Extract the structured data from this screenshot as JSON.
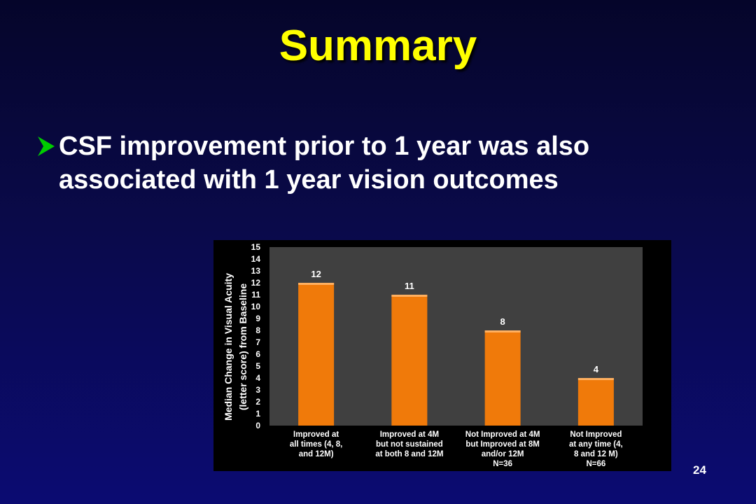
{
  "slide": {
    "title": "Summary",
    "bullet": "CSF improvement prior to 1 year was also associated with 1 year vision outcomes",
    "page_number": "24",
    "colors": {
      "background": "#0a0a50",
      "title": "#ffff00",
      "bullet_arrow": "#00cc00",
      "bar": "#f07a0a",
      "plot_area": "#404040"
    }
  },
  "chart_data": {
    "type": "bar",
    "title": "",
    "ylabel_lines": [
      "Median Change in Visual Acuity",
      "(letter score) from Baseline"
    ],
    "xlabel": "",
    "ylim": [
      0,
      15
    ],
    "yticks": [
      0,
      1,
      2,
      3,
      4,
      5,
      6,
      7,
      8,
      9,
      10,
      11,
      12,
      13,
      14,
      15
    ],
    "grid": false,
    "categories": [
      [
        "Improved at",
        "all times (4, 8,",
        "and 12M)"
      ],
      [
        "Improved at 4M",
        "but not sustained",
        "at both 8 and 12M"
      ],
      [
        "Not Improved at 4M",
        "but Improved at 8M",
        "and/or 12M",
        "N=36"
      ],
      [
        "Not Improved",
        "at any time (4,",
        "8 and 12 M)",
        "N=66"
      ]
    ],
    "values": [
      12,
      11,
      8,
      4
    ],
    "data_labels": [
      "12",
      "11",
      "8",
      "4"
    ]
  }
}
